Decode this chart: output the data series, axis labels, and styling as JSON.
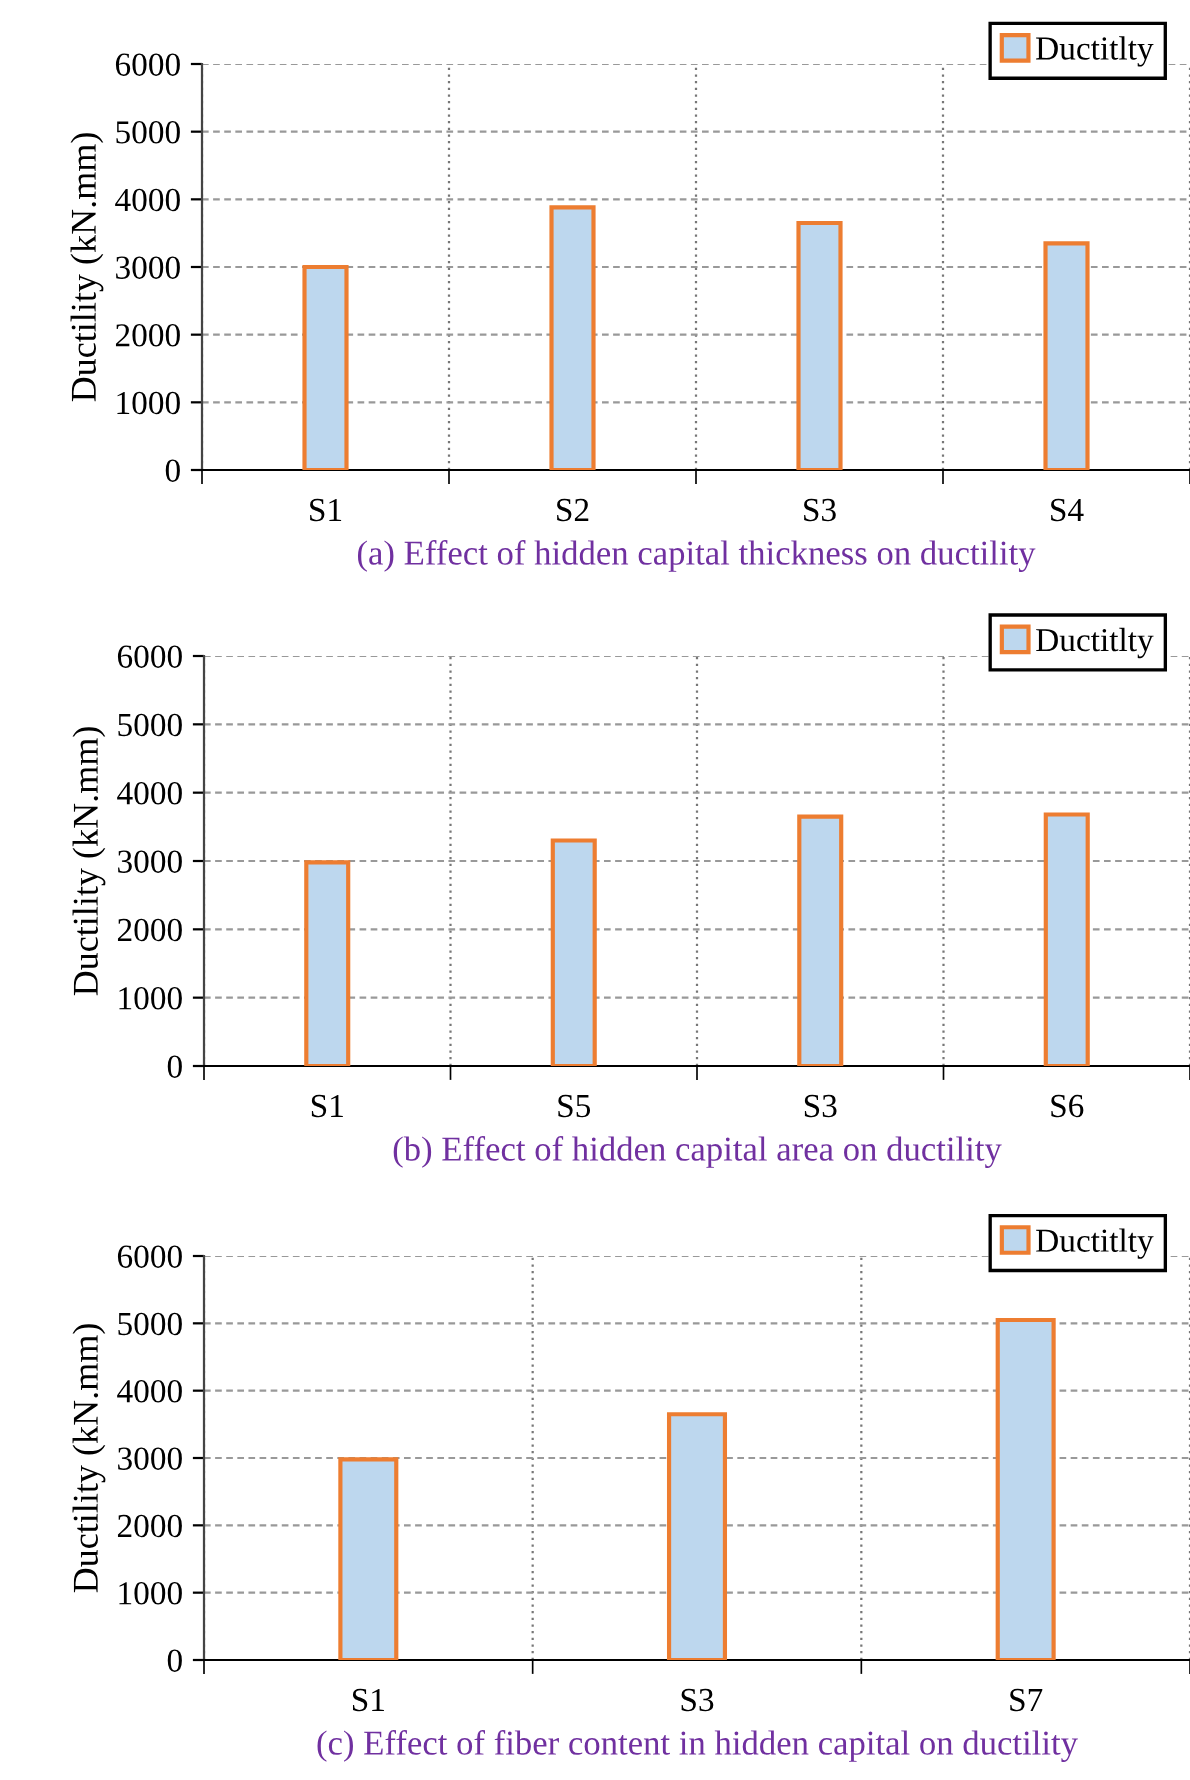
{
  "chart_data": [
    {
      "type": "bar",
      "categories": [
        "S1",
        "S2",
        "S3",
        "S4"
      ],
      "series": [
        {
          "name": "Ductitlty",
          "color": "#bdd7ee",
          "values": [
            3000,
            3880,
            3650,
            3350
          ]
        }
      ],
      "ylabel": "Ductility (kN.mm)",
      "ylim": [
        0,
        6000
      ],
      "yticks": [
        0,
        1000,
        2000,
        3000,
        4000,
        5000,
        6000
      ],
      "grid": true,
      "legend": "top right",
      "annotations": [
        "(a) Effect of hidden capital thickness on ductility"
      ]
    },
    {
      "type": "bar",
      "categories": [
        "S1",
        "S5",
        "S3",
        "S6"
      ],
      "series": [
        {
          "name": "Ductitlty",
          "color": "#bdd7ee",
          "values": [
            2980,
            3300,
            3650,
            3680
          ]
        }
      ],
      "ylabel": "Ductility (kN.mm)",
      "ylim": [
        0,
        6000
      ],
      "yticks": [
        0,
        1000,
        2000,
        3000,
        4000,
        5000,
        6000
      ],
      "grid": true,
      "legend": "top right",
      "annotations": [
        "(b) Effect of hidden capital area on ductility"
      ]
    },
    {
      "type": "bar",
      "categories": [
        "S1",
        "S3",
        "S7"
      ],
      "series": [
        {
          "name": "Ductitlty",
          "color": "#bdd7ee",
          "values": [
            2980,
            3650,
            5050
          ]
        }
      ],
      "ylabel": "Ductility (kN.mm)",
      "ylim": [
        0,
        6000
      ],
      "yticks": [
        0,
        1000,
        2000,
        3000,
        4000,
        5000,
        6000
      ],
      "grid": true,
      "legend": "top right",
      "annotations": [
        "(c) Effect of fiber content in hidden capital on ductility"
      ]
    }
  ]
}
